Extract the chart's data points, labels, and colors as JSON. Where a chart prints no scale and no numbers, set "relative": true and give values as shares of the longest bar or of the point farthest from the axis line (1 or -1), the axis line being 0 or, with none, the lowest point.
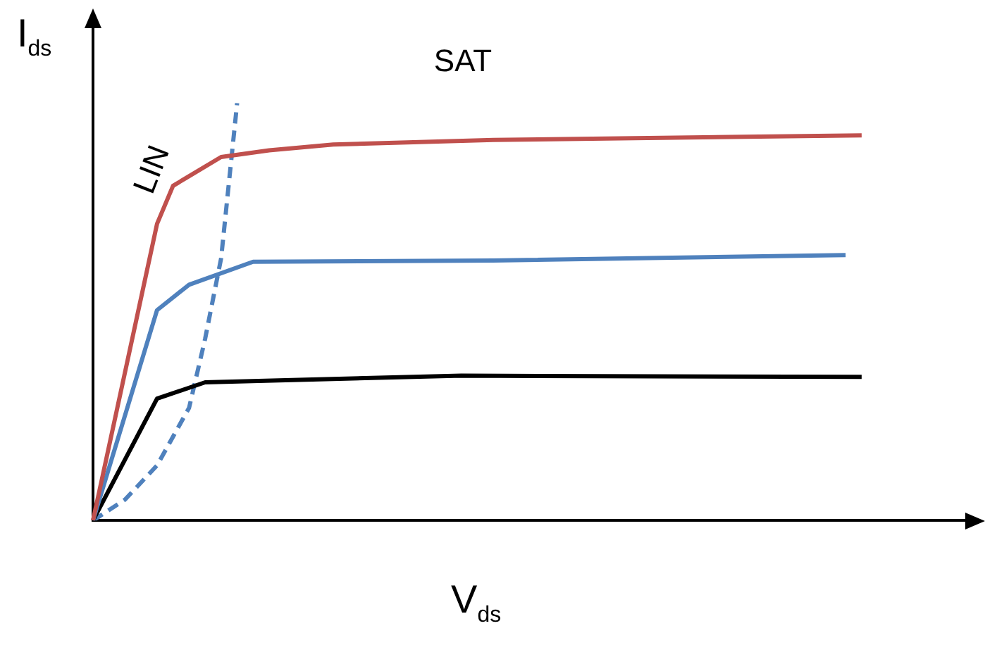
{
  "chart_data": {
    "type": "line",
    "relative": true,
    "xlabel": "V$_{ds}$",
    "ylabel": "I$_{ds}$",
    "grid": false,
    "legend": false,
    "marker": "none",
    "annotations": [
      "SAT",
      "LIN"
    ],
    "categories": [
      null,
      null,
      null,
      null,
      null,
      null,
      null,
      null,
      null,
      null,
      null,
      null,
      null,
      null,
      null,
      null,
      null,
      null,
      null,
      null,
      null,
      null,
      null,
      null,
      null,
      null,
      null,
      null,
      null,
      null,
      null,
      null,
      null,
      null,
      null,
      null,
      null,
      null,
      null,
      null,
      null,
      null,
      null,
      null,
      null,
      null,
      null,
      null,
      null,
      null,
      null,
      null,
      null,
      null,
      null,
      null
    ],
    "series": [
      {
        "color": "#c0504d",
        "values": [
          0,
          null,
          null,
          null,
          0.711,
          0.802,
          null,
          null,
          0.871,
          null,
          null,
          0.887,
          null,
          null,
          null,
          0.901,
          null,
          null,
          null,
          null,
          null,
          null,
          null,
          null,
          null,
          0.912,
          null,
          null,
          null,
          null,
          null,
          null,
          null,
          null,
          null,
          null,
          null,
          null,
          null,
          null,
          null,
          null,
          null,
          null,
          null,
          null,
          null,
          null,
          0.923,
          null,
          null,
          null,
          null,
          null,
          null,
          null
        ]
      },
      {
        "color": "#4f81bd",
        "values": [
          0,
          null,
          null,
          null,
          0.504,
          null,
          0.565,
          null,
          null,
          null,
          0.62,
          null,
          null,
          null,
          null,
          null,
          null,
          null,
          null,
          null,
          null,
          null,
          null,
          null,
          null,
          0.623,
          null,
          null,
          null,
          null,
          null,
          null,
          null,
          null,
          null,
          null,
          null,
          null,
          null,
          null,
          null,
          null,
          null,
          null,
          null,
          null,
          null,
          0.636,
          null,
          null,
          null,
          null,
          null,
          null,
          null,
          null
        ]
      },
      {
        "color": "#000000",
        "values": [
          0,
          null,
          null,
          null,
          0.292,
          null,
          null,
          0.331,
          null,
          null,
          null,
          null,
          null,
          null,
          null,
          null,
          null,
          null,
          null,
          null,
          null,
          null,
          null,
          0.347,
          null,
          null,
          null,
          null,
          null,
          null,
          null,
          null,
          null,
          null,
          null,
          null,
          null,
          null,
          null,
          null,
          null,
          null,
          null,
          null,
          null,
          null,
          null,
          null,
          0.344,
          null,
          null,
          null,
          null,
          null,
          null,
          null
        ]
      },
      {
        "color": "#4f81bd",
        "line_style": "dashed",
        "values": [
          0,
          null,
          0.05,
          null,
          0.132,
          null,
          0.27,
          0.435,
          0.628,
          1,
          null,
          null,
          null,
          null,
          null,
          null,
          null,
          null,
          null,
          null,
          null,
          null,
          null,
          null,
          null,
          null,
          null,
          null,
          null,
          null,
          null,
          null,
          null,
          null,
          null,
          null,
          null,
          null,
          null,
          null,
          null,
          null,
          null,
          null,
          null,
          null,
          null,
          null,
          null,
          null,
          null,
          null,
          null,
          null,
          null,
          null
        ]
      }
    ]
  }
}
